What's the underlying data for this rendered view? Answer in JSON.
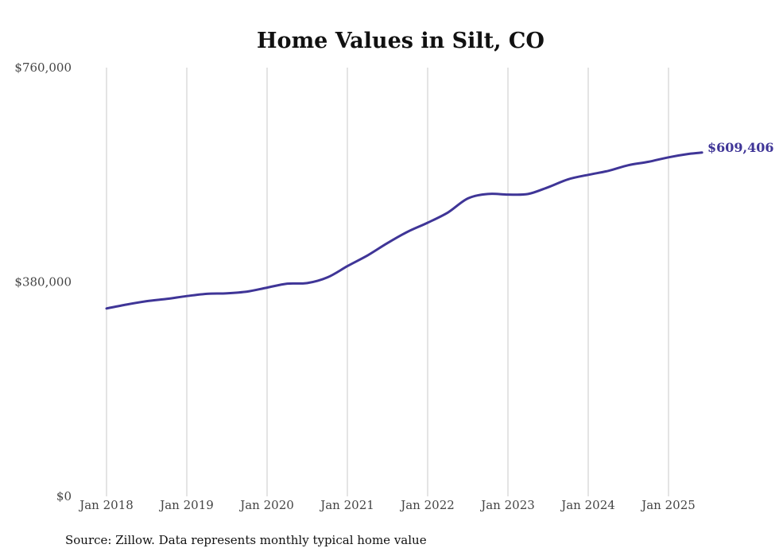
{
  "chart_data": {
    "type": "line",
    "title": "Home Values in Silt, CO",
    "xlabel": "",
    "ylabel": "",
    "ylim": [
      0,
      760000
    ],
    "y_ticks": [
      "$0",
      "$380,000",
      "$760,000"
    ],
    "y_tick_values": [
      0,
      380000,
      760000
    ],
    "x_ticks": [
      "Jan 2018",
      "Jan 2019",
      "Jan 2020",
      "Jan 2021",
      "Jan 2022",
      "Jan 2023",
      "Jan 2024",
      "Jan 2025"
    ],
    "grid": "vertical",
    "line_color": "#3f3597",
    "series": [
      {
        "values": [
          [
            "2018-01",
            333000
          ],
          [
            "2018-04",
            340000
          ],
          [
            "2018-07",
            346000
          ],
          [
            "2018-10",
            350000
          ],
          [
            "2019-01",
            355000
          ],
          [
            "2019-04",
            359000
          ],
          [
            "2019-07",
            360000
          ],
          [
            "2019-10",
            363000
          ],
          [
            "2020-01",
            370000
          ],
          [
            "2020-04",
            377000
          ],
          [
            "2020-07",
            378000
          ],
          [
            "2020-10",
            388000
          ],
          [
            "2021-01",
            408000
          ],
          [
            "2021-04",
            427000
          ],
          [
            "2021-07",
            449000
          ],
          [
            "2021-10",
            469000
          ],
          [
            "2022-01",
            485000
          ],
          [
            "2022-04",
            503000
          ],
          [
            "2022-07",
            528000
          ],
          [
            "2022-10",
            536000
          ],
          [
            "2023-01",
            535000
          ],
          [
            "2023-04",
            536000
          ],
          [
            "2023-07",
            548000
          ],
          [
            "2023-10",
            562000
          ],
          [
            "2024-01",
            570000
          ],
          [
            "2024-04",
            577000
          ],
          [
            "2024-07",
            587000
          ],
          [
            "2024-10",
            593000
          ],
          [
            "2025-01",
            601000
          ],
          [
            "2025-04",
            607000
          ],
          [
            "2025-06",
            609406
          ]
        ]
      }
    ],
    "end_label": "$609,406",
    "source": "Source: Zillow. Data represents monthly typical home value"
  }
}
